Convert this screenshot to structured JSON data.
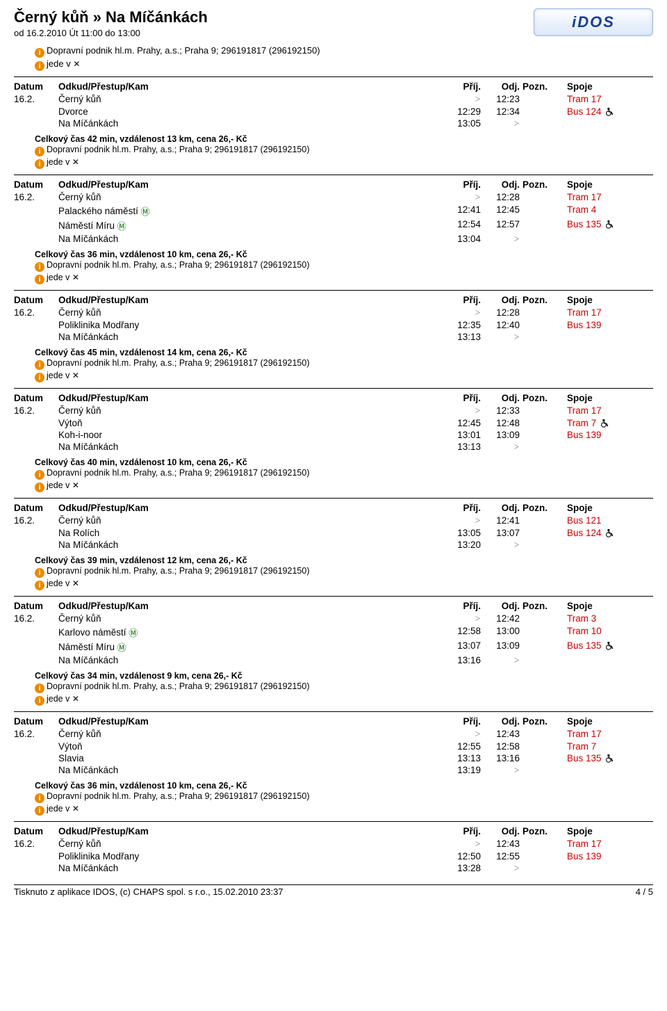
{
  "header": {
    "title": "Černý kůň » Na Míčánkách",
    "subtitle": "od 16.2.2010 Út 11:00 do 13:00",
    "logo_text": "iDOS",
    "info1": "Dopravní podnik hl.m. Prahy, a.s.; Praha 9; 296191817 (296192150)",
    "info2": "jede v "
  },
  "labels": {
    "datum": "Datum",
    "odkud": "Odkud/Přestup/Kam",
    "prij": "Příj.",
    "odj": "Odj.",
    "pozn": "Pozn.",
    "spoje": "Spoje"
  },
  "common": {
    "provider": "Dopravní podnik hl.m. Prahy, a.s.; Praha 9; 296191817 (296192150)",
    "runs": "jede v ",
    "chevron": ">",
    "date": "16.2."
  },
  "colors": {
    "spoje": "#cc0000",
    "text": "#000000",
    "info_icon_bg": "#e88a00",
    "bg": "#ffffff"
  },
  "trips": [
    {
      "rows": [
        {
          "date": "16.2.",
          "stop": "Černý kůň",
          "prij": ">",
          "odj": "12:23",
          "spoje": "Tram 17",
          "metro": false,
          "wc": false
        },
        {
          "date": "",
          "stop": "Dvorce",
          "prij": "12:29",
          "odj": "12:34",
          "spoje": "Bus 124",
          "metro": false,
          "wc": true
        },
        {
          "date": "",
          "stop": "Na Míčánkách",
          "prij": "13:05",
          "odj": ">",
          "spoje": "",
          "metro": false,
          "wc": false
        }
      ],
      "summary": "Celkový čas 42 min, vzdálenost 13 km, cena 26,- Kč"
    },
    {
      "rows": [
        {
          "date": "16.2.",
          "stop": "Černý kůň",
          "prij": ">",
          "odj": "12:28",
          "spoje": "Tram 17",
          "metro": false,
          "wc": false
        },
        {
          "date": "",
          "stop": "Palackého náměstí",
          "prij": "12:41",
          "odj": "12:45",
          "spoje": "Tram 4",
          "metro": true,
          "wc": false
        },
        {
          "date": "",
          "stop": "Náměstí Míru",
          "prij": "12:54",
          "odj": "12:57",
          "spoje": "Bus 135",
          "metro": true,
          "wc": true
        },
        {
          "date": "",
          "stop": "Na Míčánkách",
          "prij": "13:04",
          "odj": ">",
          "spoje": "",
          "metro": false,
          "wc": false
        }
      ],
      "summary": "Celkový čas 36 min, vzdálenost 10 km, cena 26,- Kč"
    },
    {
      "rows": [
        {
          "date": "16.2.",
          "stop": "Černý kůň",
          "prij": ">",
          "odj": "12:28",
          "spoje": "Tram 17",
          "metro": false,
          "wc": false
        },
        {
          "date": "",
          "stop": "Poliklinika Modřany",
          "prij": "12:35",
          "odj": "12:40",
          "spoje": "Bus 139",
          "metro": false,
          "wc": false
        },
        {
          "date": "",
          "stop": "Na Míčánkách",
          "prij": "13:13",
          "odj": ">",
          "spoje": "",
          "metro": false,
          "wc": false
        }
      ],
      "summary": "Celkový čas 45 min, vzdálenost 14 km, cena 26,- Kč"
    },
    {
      "rows": [
        {
          "date": "16.2.",
          "stop": "Černý kůň",
          "prij": ">",
          "odj": "12:33",
          "spoje": "Tram 17",
          "metro": false,
          "wc": false
        },
        {
          "date": "",
          "stop": "Výtoň",
          "prij": "12:45",
          "odj": "12:48",
          "spoje": "Tram 7",
          "metro": false,
          "wc": true
        },
        {
          "date": "",
          "stop": "Koh-i-noor",
          "prij": "13:01",
          "odj": "13:09",
          "spoje": "Bus 139",
          "metro": false,
          "wc": false
        },
        {
          "date": "",
          "stop": "Na Míčánkách",
          "prij": "13:13",
          "odj": ">",
          "spoje": "",
          "metro": false,
          "wc": false
        }
      ],
      "summary": "Celkový čas 40 min, vzdálenost 10 km, cena 26,- Kč"
    },
    {
      "rows": [
        {
          "date": "16.2.",
          "stop": "Černý kůň",
          "prij": ">",
          "odj": "12:41",
          "spoje": "Bus 121",
          "metro": false,
          "wc": false
        },
        {
          "date": "",
          "stop": "Na Rolích",
          "prij": "13:05",
          "odj": "13:07",
          "spoje": "Bus 124",
          "metro": false,
          "wc": true
        },
        {
          "date": "",
          "stop": "Na Míčánkách",
          "prij": "13:20",
          "odj": ">",
          "spoje": "",
          "metro": false,
          "wc": false
        }
      ],
      "summary": "Celkový čas 39 min, vzdálenost 12 km, cena 26,- Kč"
    },
    {
      "rows": [
        {
          "date": "16.2.",
          "stop": "Černý kůň",
          "prij": ">",
          "odj": "12:42",
          "spoje": "Tram 3",
          "metro": false,
          "wc": false
        },
        {
          "date": "",
          "stop": "Karlovo náměstí",
          "prij": "12:58",
          "odj": "13:00",
          "spoje": "Tram 10",
          "metro": true,
          "wc": false
        },
        {
          "date": "",
          "stop": "Náměstí Míru",
          "prij": "13:07",
          "odj": "13:09",
          "spoje": "Bus 135",
          "metro": true,
          "wc": true
        },
        {
          "date": "",
          "stop": "Na Míčánkách",
          "prij": "13:16",
          "odj": ">",
          "spoje": "",
          "metro": false,
          "wc": false
        }
      ],
      "summary": "Celkový čas 34 min, vzdálenost 9 km, cena 26,- Kč"
    },
    {
      "rows": [
        {
          "date": "16.2.",
          "stop": "Černý kůň",
          "prij": ">",
          "odj": "12:43",
          "spoje": "Tram 17",
          "metro": false,
          "wc": false
        },
        {
          "date": "",
          "stop": "Výtoň",
          "prij": "12:55",
          "odj": "12:58",
          "spoje": "Tram 7",
          "metro": false,
          "wc": false
        },
        {
          "date": "",
          "stop": "Slavia",
          "prij": "13:13",
          "odj": "13:16",
          "spoje": "Bus 135",
          "metro": false,
          "wc": true
        },
        {
          "date": "",
          "stop": "Na Míčánkách",
          "prij": "13:19",
          "odj": ">",
          "spoje": "",
          "metro": false,
          "wc": false
        }
      ],
      "summary": "Celkový čas 36 min, vzdálenost 10 km, cena 26,- Kč"
    },
    {
      "rows": [
        {
          "date": "16.2.",
          "stop": "Černý kůň",
          "prij": ">",
          "odj": "12:43",
          "spoje": "Tram 17",
          "metro": false,
          "wc": false
        },
        {
          "date": "",
          "stop": "Poliklinika Modřany",
          "prij": "12:50",
          "odj": "12:55",
          "spoje": "Bus 139",
          "metro": false,
          "wc": false
        },
        {
          "date": "",
          "stop": "Na Míčánkách",
          "prij": "13:28",
          "odj": ">",
          "spoje": "",
          "metro": false,
          "wc": false
        }
      ],
      "summary": ""
    }
  ],
  "footer": {
    "left": "Tisknuto z aplikace IDOS, (c) CHAPS spol. s r.o., 15.02.2010 23:37",
    "right": "4 / 5"
  }
}
